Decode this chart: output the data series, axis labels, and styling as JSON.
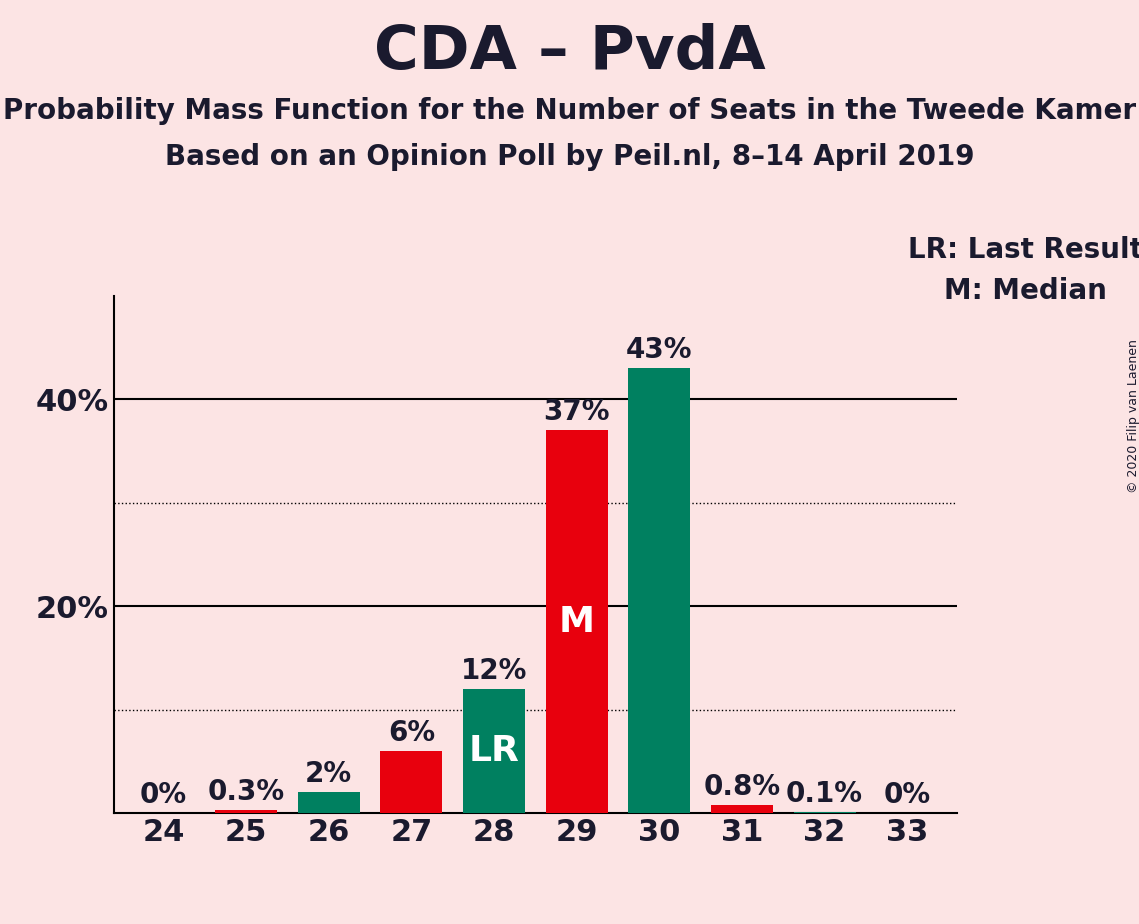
{
  "title": "CDA – PvdA",
  "subtitle1": "Probability Mass Function for the Number of Seats in the Tweede Kamer",
  "subtitle2": "Based on an Opinion Poll by Peil.nl, 8–14 April 2019",
  "copyright": "© 2020 Filip van Laenen",
  "legend_lr": "LR: Last Result",
  "legend_m": "M: Median",
  "background_color": "#fce4e4",
  "categories": [
    24,
    25,
    26,
    27,
    28,
    29,
    30,
    31,
    32,
    33
  ],
  "red_values": [
    0.0,
    0.3,
    0.0,
    6.0,
    0.0,
    37.0,
    0.0,
    0.8,
    0.0,
    0.0
  ],
  "green_values": [
    0.0,
    0.0,
    2.0,
    0.0,
    12.0,
    0.0,
    43.0,
    0.0,
    0.1,
    0.0
  ],
  "red_color": "#e8000d",
  "green_color": "#008060",
  "label_color": "#1a1a2e",
  "bar_label_fontsize": 20,
  "title_fontsize": 44,
  "subtitle_fontsize": 20,
  "axis_tick_fontsize": 22,
  "ylim": [
    0,
    50
  ],
  "dotted_lines": [
    10,
    30
  ],
  "solid_lines": [
    20,
    40
  ],
  "lr_seat": 28,
  "median_seat": 29,
  "label_texts": {
    "24": "0%",
    "25": "0.3%",
    "26": "2%",
    "27": "6%",
    "28": "12%",
    "29": "37%",
    "30": "43%",
    "31": "0.8%",
    "32": "0.1%",
    "33": "0%"
  }
}
